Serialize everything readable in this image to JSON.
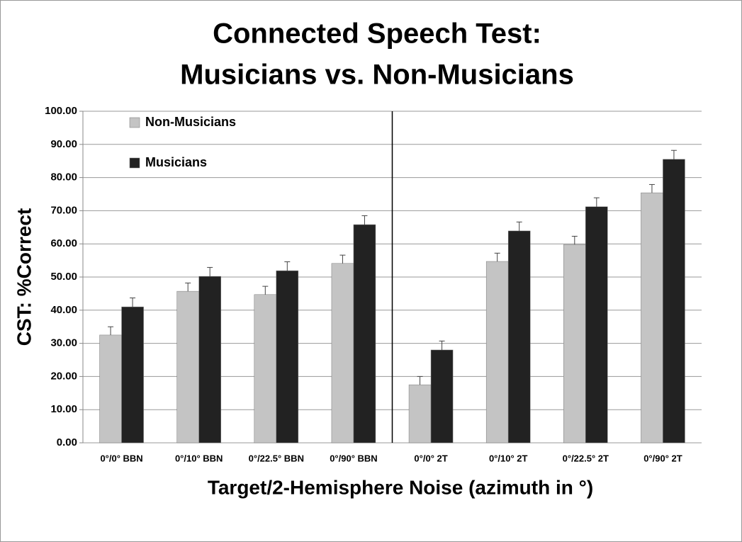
{
  "chart_data": {
    "type": "bar",
    "title": [
      "Connected Speech Test:",
      "Musicians vs. Non-Musicians"
    ],
    "x_label": "Target/2-Hemisphere Noise (azimuth in °)",
    "y_label": "CST: %Correct",
    "categories": [
      "0°/0° BBN",
      "0°/10° BBN",
      "0°/22.5° BBN",
      "0°/90° BBN",
      "0°/0° 2T",
      "0°/10° 2T",
      "0°/22.5° 2T",
      "0°/90° 2T"
    ],
    "series": [
      {
        "name": "Non-Musicians",
        "color": "#c4c4c4",
        "values": [
          32.5,
          45.7,
          44.7,
          54.1,
          17.5,
          54.7,
          59.8,
          75.4
        ],
        "errors": [
          2.5,
          2.5,
          2.5,
          2.5,
          2.5,
          2.5,
          2.5,
          2.5
        ]
      },
      {
        "name": "Musicians",
        "color": "#222222",
        "values": [
          41.0,
          50.2,
          51.9,
          65.8,
          28.0,
          63.9,
          71.2,
          85.5
        ],
        "errors": [
          2.7,
          2.7,
          2.7,
          2.7,
          2.7,
          2.7,
          2.7,
          2.7
        ]
      }
    ],
    "ylim": [
      0,
      100
    ],
    "yticks": [
      {
        "value": 0,
        "label": "0.00"
      },
      {
        "value": 10,
        "label": "10.00"
      },
      {
        "value": 20,
        "label": "20.00"
      },
      {
        "value": 30,
        "label": "30.00"
      },
      {
        "value": 40,
        "label": "40.00"
      },
      {
        "value": 50,
        "label": "50.00"
      },
      {
        "value": 60,
        "label": "60.00"
      },
      {
        "value": 70,
        "label": "70.00"
      },
      {
        "value": 80,
        "label": "80.00"
      },
      {
        "value": 90,
        "label": "90.00"
      },
      {
        "value": 100,
        "label": "100.00"
      }
    ],
    "grid": true,
    "legend": "upper left"
  }
}
